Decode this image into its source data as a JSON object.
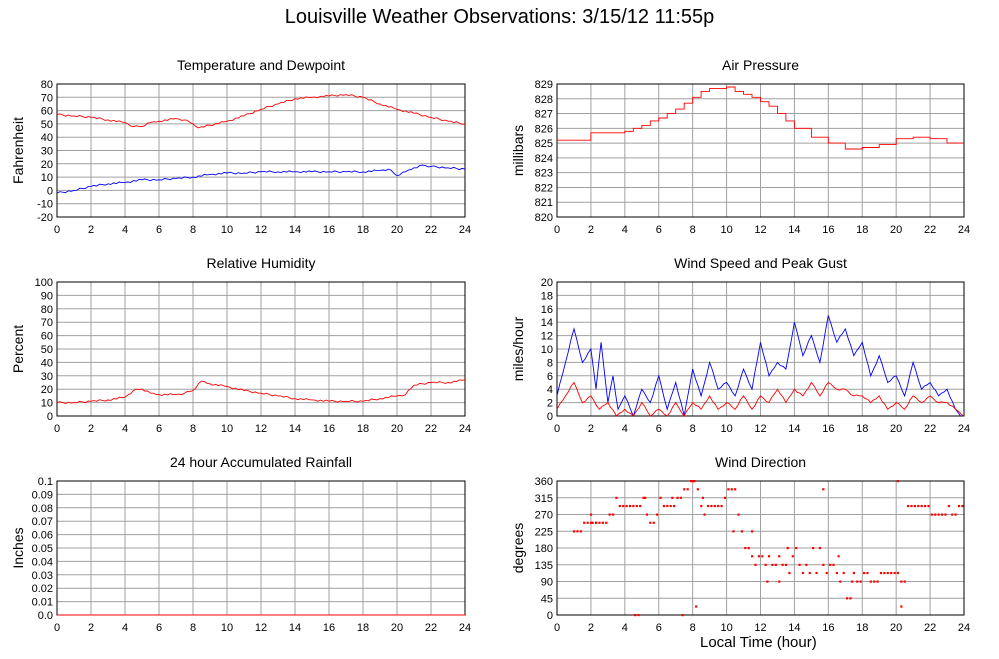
{
  "title": "Louisville Weather Observations: 3/15/12 11:55p",
  "xlabel": "Local Time (hour)",
  "colors": {
    "red": "#ff0000",
    "blue": "#0000ff",
    "grid": "#a0a0a0"
  },
  "chart_data": [
    {
      "id": "temperature",
      "type": "line",
      "title": "Temperature and Dewpoint",
      "ylabel": "Fahrenheit",
      "xlim": [
        0,
        24
      ],
      "ylim": [
        -20,
        80
      ],
      "xticks": [
        0,
        2,
        4,
        6,
        8,
        10,
        12,
        14,
        16,
        18,
        20,
        22,
        24
      ],
      "yticks": [
        -20,
        -10,
        0,
        10,
        20,
        30,
        40,
        50,
        60,
        70,
        80
      ],
      "ytick_labels": [
        "-20",
        "-10",
        "0",
        "10",
        "20",
        "30",
        "40",
        "50",
        "60",
        "70",
        "80"
      ],
      "grid": true,
      "series": [
        {
          "color": "#ff0000",
          "style": "line",
          "x": [
            0,
            1,
            2,
            3,
            4,
            4.5,
            5,
            5.5,
            6,
            7,
            7.5,
            8,
            8.3,
            9,
            10,
            11,
            12,
            13,
            14,
            15,
            16,
            17,
            18,
            19,
            20,
            21,
            22,
            23,
            24
          ],
          "y": [
            57,
            56,
            55,
            53,
            51,
            48,
            48,
            51,
            52,
            54,
            53,
            50,
            47,
            49,
            52,
            56,
            61,
            65,
            69,
            70,
            71,
            72,
            70,
            65,
            61,
            58,
            55,
            52,
            50
          ]
        },
        {
          "color": "#0000ff",
          "style": "line",
          "x": [
            0,
            1,
            2,
            3,
            4,
            5,
            6,
            7,
            8,
            9,
            10,
            11,
            12,
            13,
            14,
            15,
            16,
            17,
            18,
            19,
            19.5,
            20,
            20.5,
            21,
            21.5,
            22,
            23,
            24
          ],
          "y": [
            -2,
            0,
            3,
            5,
            6,
            8,
            8,
            9,
            10,
            12,
            13,
            13,
            14,
            14,
            14,
            14,
            14,
            14,
            14,
            15,
            16,
            11,
            14,
            17,
            19,
            18,
            17,
            16
          ]
        }
      ]
    },
    {
      "id": "pressure",
      "type": "line",
      "title": "Air Pressure",
      "ylabel": "millibars",
      "xlim": [
        0,
        24
      ],
      "ylim": [
        820,
        829
      ],
      "xticks": [
        0,
        2,
        4,
        6,
        8,
        10,
        12,
        14,
        16,
        18,
        20,
        22,
        24
      ],
      "yticks": [
        820,
        821,
        822,
        823,
        824,
        825,
        826,
        827,
        828,
        829
      ],
      "ytick_labels": [
        "820",
        "821",
        "822",
        "823",
        "824",
        "825",
        "826",
        "827",
        "828",
        "829"
      ],
      "grid": true,
      "series": [
        {
          "color": "#ff0000",
          "style": "step",
          "x": [
            0,
            1.5,
            2,
            3,
            4,
            4.5,
            5,
            5.5,
            6,
            6.5,
            7,
            7.5,
            8,
            8.5,
            9,
            10,
            10.5,
            11,
            11.5,
            12,
            12.5,
            13,
            13.5,
            14,
            15,
            16,
            17,
            18,
            19,
            20,
            21,
            22,
            23,
            24
          ],
          "y": [
            825.2,
            825.2,
            825.7,
            825.7,
            825.8,
            826.0,
            826.2,
            826.5,
            826.7,
            827.0,
            827.3,
            827.7,
            828.1,
            828.5,
            828.7,
            828.8,
            828.5,
            828.3,
            828.1,
            827.8,
            827.5,
            827.0,
            826.5,
            826.0,
            825.4,
            825.0,
            824.6,
            824.7,
            824.9,
            825.3,
            825.4,
            825.3,
            825.0,
            825.0
          ]
        }
      ]
    },
    {
      "id": "humidity",
      "type": "line",
      "title": "Relative Humidity",
      "ylabel": "Percent",
      "xlim": [
        0,
        24
      ],
      "ylim": [
        0,
        100
      ],
      "xticks": [
        0,
        2,
        4,
        6,
        8,
        10,
        12,
        14,
        16,
        18,
        20,
        22,
        24
      ],
      "yticks": [
        0,
        10,
        20,
        30,
        40,
        50,
        60,
        70,
        80,
        90,
        100
      ],
      "ytick_labels": [
        "0",
        "10",
        "20",
        "30",
        "40",
        "50",
        "60",
        "70",
        "80",
        "90",
        "100"
      ],
      "grid": true,
      "series": [
        {
          "color": "#ff0000",
          "style": "line",
          "x": [
            0,
            1,
            2,
            3,
            4,
            4.5,
            5,
            5.5,
            6,
            7,
            7.5,
            8,
            8.5,
            9,
            10,
            11,
            12,
            13,
            14,
            15,
            16,
            17,
            18,
            19,
            20,
            20.5,
            21,
            22,
            23,
            24
          ],
          "y": [
            10,
            10,
            11,
            12,
            14,
            19,
            20,
            17,
            16,
            16,
            17,
            19,
            26,
            24,
            22,
            19,
            17,
            15,
            13,
            12,
            11,
            11,
            11,
            13,
            15,
            16,
            23,
            25,
            25,
            27
          ]
        }
      ]
    },
    {
      "id": "wind-speed",
      "type": "line",
      "title": "Wind Speed and Peak Gust",
      "ylabel": "miles/hour",
      "xlim": [
        0,
        24
      ],
      "ylim": [
        0,
        20
      ],
      "xticks": [
        0,
        2,
        4,
        6,
        8,
        10,
        12,
        14,
        16,
        18,
        20,
        22,
        24
      ],
      "yticks": [
        0,
        2,
        4,
        6,
        8,
        10,
        12,
        14,
        16,
        18,
        20
      ],
      "ytick_labels": [
        "0",
        "2",
        "4",
        "6",
        "8",
        "10",
        "12",
        "14",
        "16",
        "18",
        "20"
      ],
      "grid": true,
      "series": [
        {
          "color": "#0000ff",
          "style": "line",
          "x": [
            0,
            0.5,
            1,
            1.5,
            2,
            2.3,
            2.6,
            3,
            3.3,
            3.6,
            4,
            4.5,
            5,
            5.5,
            6,
            6.5,
            7,
            7.5,
            8,
            8.5,
            9,
            9.5,
            10,
            10.5,
            11,
            11.5,
            12,
            12.5,
            13,
            13.5,
            14,
            14.5,
            15,
            15.5,
            16,
            16.5,
            17,
            17.5,
            18,
            18.5,
            19,
            19.5,
            20,
            20.5,
            21,
            21.5,
            22,
            22.5,
            23,
            23.5,
            23.8
          ],
          "y": [
            3,
            8,
            13,
            8,
            10,
            4,
            11,
            2,
            6,
            1,
            3,
            0,
            4,
            2,
            6,
            1,
            5,
            0,
            7,
            3,
            8,
            4,
            5,
            3,
            7,
            4,
            11,
            6,
            8,
            7,
            14,
            9,
            12,
            8,
            15,
            11,
            13,
            9,
            11,
            6,
            9,
            5,
            6,
            3,
            8,
            4,
            5,
            3,
            4,
            1,
            0
          ]
        },
        {
          "color": "#ff0000",
          "style": "line",
          "x": [
            0,
            0.5,
            1,
            1.5,
            2,
            2.5,
            3,
            3.5,
            4,
            4.5,
            5,
            5.5,
            6,
            6.5,
            7,
            7.5,
            8,
            8.5,
            9,
            9.5,
            10,
            10.5,
            11,
            11.5,
            12,
            12.5,
            13,
            13.5,
            14,
            14.5,
            15,
            15.5,
            16,
            16.5,
            17,
            17.5,
            18,
            18.5,
            19,
            19.5,
            20,
            20.5,
            21,
            21.5,
            22,
            22.5,
            23,
            23.5,
            24
          ],
          "y": [
            1,
            3,
            5,
            2,
            3,
            1,
            2,
            0,
            1,
            0,
            2,
            0,
            1,
            0,
            2,
            0,
            2,
            1,
            3,
            1,
            2,
            1,
            3,
            1,
            3,
            2,
            4,
            2,
            4,
            3,
            5,
            3,
            5,
            4,
            4,
            3,
            3,
            2,
            3,
            1,
            2,
            1,
            3,
            2,
            3,
            2,
            2,
            1,
            0
          ]
        }
      ]
    },
    {
      "id": "rainfall",
      "type": "line",
      "title": "24 hour Accumulated Rainfall",
      "ylabel": "Inches",
      "xlim": [
        0,
        24
      ],
      "ylim": [
        0,
        0.1
      ],
      "xticks": [
        0,
        2,
        4,
        6,
        8,
        10,
        12,
        14,
        16,
        18,
        20,
        22,
        24
      ],
      "yticks": [
        0,
        0.01,
        0.02,
        0.03,
        0.04,
        0.05,
        0.06,
        0.07,
        0.08,
        0.09,
        0.1
      ],
      "ytick_labels": [
        "0.0",
        "0.01",
        "0.02",
        "0.03",
        "0.04",
        "0.05",
        "0.06",
        "0.07",
        "0.08",
        "0.09",
        "0.1"
      ],
      "grid": true,
      "series": [
        {
          "color": "#ff0000",
          "style": "line",
          "x": [
            0,
            24
          ],
          "y": [
            0,
            0
          ]
        }
      ]
    },
    {
      "id": "wind-direction",
      "type": "scatter",
      "title": "Wind Direction",
      "ylabel": "degrees",
      "xlim": [
        0,
        24
      ],
      "ylim": [
        0,
        360
      ],
      "xticks": [
        0,
        2,
        4,
        6,
        8,
        10,
        12,
        14,
        16,
        18,
        20,
        22,
        24
      ],
      "yticks": [
        0,
        45,
        90,
        135,
        180,
        225,
        270,
        315,
        360
      ],
      "ytick_labels": [
        "0",
        "45",
        "90",
        "135",
        "180",
        "225",
        "270",
        "315",
        "360"
      ],
      "grid": true,
      "series": [
        {
          "color": "#ff0000",
          "style": "dots",
          "x": [
            1.0,
            1.2,
            1.4,
            1.6,
            1.8,
            2.0,
            2.1,
            2.3,
            2.5,
            2.7,
            2.9,
            3.1,
            3.3,
            3.5,
            3.7,
            3.9,
            4.1,
            4.3,
            4.5,
            4.7,
            4.9,
            5.1,
            5.3,
            5.5,
            5.7,
            5.9,
            6.1,
            6.3,
            6.5,
            6.7,
            6.9,
            7.1,
            7.3,
            7.5,
            7.7,
            7.9,
            8.1,
            8.3,
            8.5,
            8.7,
            8.9,
            9.1,
            9.3,
            9.5,
            9.7,
            9.9,
            10.1,
            10.3,
            10.5,
            10.7,
            10.9,
            11.1,
            11.3,
            11.5,
            11.7,
            11.9,
            12.1,
            12.3,
            12.5,
            12.7,
            12.9,
            13.1,
            13.3,
            13.5,
            13.7,
            13.9,
            14.1,
            14.3,
            14.5,
            14.7,
            14.9,
            15.1,
            15.3,
            15.5,
            15.7,
            15.9,
            16.1,
            16.3,
            16.5,
            16.7,
            16.9,
            17.1,
            17.3,
            17.5,
            17.7,
            17.9,
            18.1,
            18.3,
            18.5,
            18.7,
            18.9,
            19.1,
            19.3,
            19.5,
            19.7,
            19.9,
            20.1,
            20.3,
            20.5,
            20.7,
            20.9,
            21.1,
            21.3,
            21.5,
            21.7,
            21.9,
            22.1,
            22.3,
            22.5,
            22.7,
            22.9,
            23.1,
            23.3,
            23.5,
            23.7,
            23.9,
            4.6,
            4.8,
            7.4,
            8.0,
            8.2,
            2.0,
            2.3,
            5.2,
            6.8,
            8.6,
            10.4,
            11.5,
            12.4,
            13.1,
            13.6,
            15.7,
            16.6,
            17.4,
            20.1,
            20.3
          ],
          "y": [
            225,
            225,
            225,
            248,
            248,
            248,
            248,
            248,
            248,
            248,
            248,
            270,
            270,
            315,
            293,
            293,
            293,
            293,
            293,
            293,
            293,
            315,
            270,
            248,
            248,
            270,
            315,
            293,
            293,
            293,
            293,
            315,
            315,
            338,
            338,
            360,
            360,
            338,
            293,
            270,
            293,
            293,
            293,
            293,
            293,
            315,
            338,
            338,
            338,
            270,
            225,
            180,
            180,
            158,
            135,
            158,
            158,
            135,
            158,
            135,
            135,
            158,
            135,
            135,
            113,
            158,
            180,
            135,
            113,
            135,
            113,
            180,
            113,
            180,
            135,
            113,
            135,
            135,
            113,
            90,
            113,
            45,
            45,
            113,
            90,
            90,
            113,
            113,
            90,
            90,
            90,
            113,
            113,
            113,
            113,
            113,
            113,
            90,
            90,
            293,
            293,
            293,
            293,
            293,
            293,
            293,
            270,
            270,
            270,
            270,
            270,
            293,
            270,
            270,
            293,
            293,
            0,
            0,
            0,
            360,
            23,
            270,
            248,
            315,
            315,
            315,
            225,
            225,
            90,
            90,
            180,
            338,
            158,
            90,
            360,
            23
          ]
        }
      ]
    }
  ]
}
